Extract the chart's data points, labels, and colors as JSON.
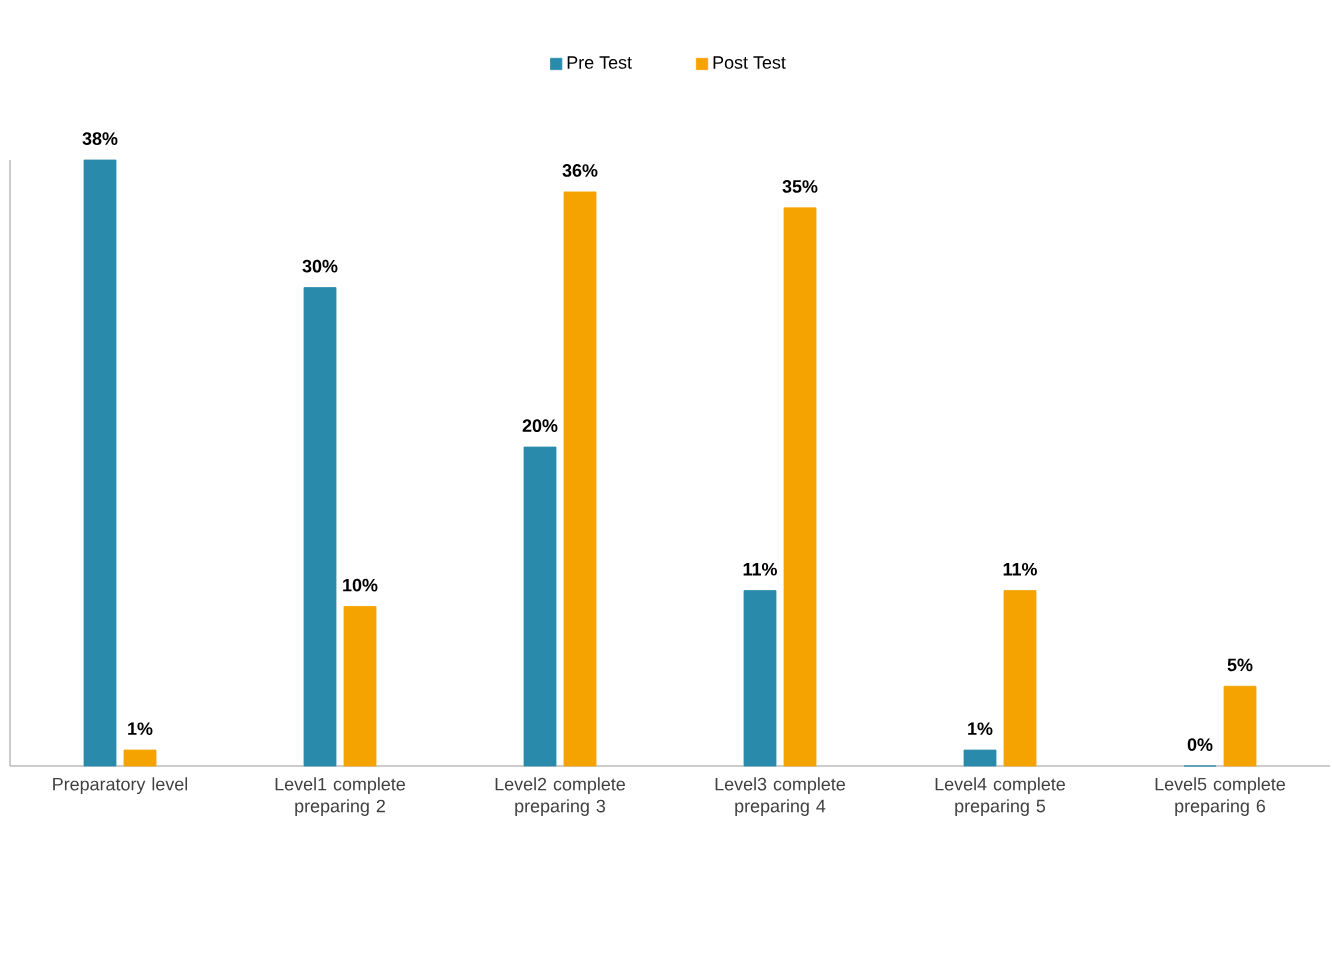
{
  "chart_data": {
    "type": "bar",
    "categories": [
      "Preparatory level",
      "Level1 complete preparing 2",
      "Level2 complete preparing 3",
      "Level3 complete preparing 4",
      "Level4 complete preparing 5",
      "Level5 complete preparing 6"
    ],
    "series": [
      {
        "name": "Pre Test",
        "color": "#2a8aab",
        "values": [
          38,
          30,
          20,
          11,
          1,
          0
        ],
        "value_labels": [
          "38%",
          "30%",
          "20%",
          "11%",
          "1%",
          "0%"
        ]
      },
      {
        "name": "Post Test",
        "color": "#f4a300",
        "values": [
          1,
          10,
          36,
          35,
          11,
          5
        ],
        "value_labels": [
          "1%",
          "10%",
          "36%",
          "35%",
          "11%",
          "5%"
        ]
      }
    ],
    "tick_labels": "x",
    "legend": "top"
  }
}
